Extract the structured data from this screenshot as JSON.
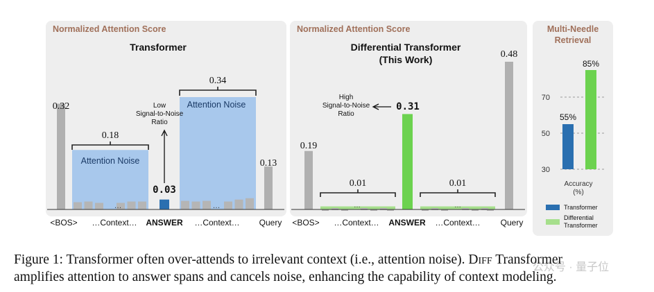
{
  "chart_data": [
    {
      "type": "bar",
      "panel_label": "Normalized Attention Score",
      "title": "Transformer",
      "categories": [
        "<BOS>",
        "…Context…",
        "ANSWER",
        "…Context…",
        "Query"
      ],
      "values": [
        0.32,
        0.18,
        0.03,
        0.34,
        0.13
      ],
      "value_labels": [
        "0.32",
        "0.18",
        "0.03",
        "0.34",
        "0.13"
      ],
      "noise_label": "Attention Noise",
      "context_bar_values": [
        0.022,
        0.024,
        0.02,
        0.012,
        0.02,
        0.024,
        0.024
      ],
      "context_bar_values_right": [
        0.026,
        0.024,
        0.026,
        0.012,
        0.024,
        0.03,
        0.034
      ],
      "ellipsis": "…",
      "annotation": [
        "Low",
        "Signal-to-Noise",
        "Ratio"
      ],
      "colors": {
        "bos": "#b0b0b0",
        "noise": "#a8c8ec",
        "context": "#b5b5b5",
        "answer": "#2a6fb0"
      }
    },
    {
      "type": "bar",
      "panel_label": "Normalized Attention Score",
      "title": [
        "Differential Transformer",
        "(This Work)"
      ],
      "categories": [
        "<BOS>",
        "…Context…",
        "ANSWER",
        "…Context…",
        "Query"
      ],
      "values": [
        0.19,
        0.01,
        0.31,
        0.01,
        0.48
      ],
      "value_labels": [
        "0.19",
        "0.01",
        "0.31",
        "0.01",
        "0.48"
      ],
      "ellipsis": "…",
      "annotation": [
        "High",
        "Signal-to-Noise",
        "Ratio"
      ],
      "colors": {
        "bos": "#b0b0b0",
        "noise": "#a6df8c",
        "answer": "#6cd24f"
      }
    },
    {
      "type": "bar",
      "title": [
        "Multi-Needle",
        "Retrieval"
      ],
      "series": [
        {
          "name": "Transformer",
          "values": [
            55
          ]
        },
        {
          "name": "Differential Transformer",
          "values": [
            85
          ]
        }
      ],
      "value_labels": [
        "55%",
        "85%"
      ],
      "legend_labels": [
        "Transformer",
        [
          "Differential",
          "Transformer"
        ]
      ],
      "ylabel": [
        "Accuracy",
        "(%)"
      ],
      "yticks": [
        30,
        50,
        70
      ],
      "ylim": [
        30,
        90
      ],
      "colors": {
        "transformer": "#2a6fb0",
        "diff": "#6cd24f"
      }
    }
  ],
  "caption": {
    "line1_a": "Figure 1: Transformer often over-attends to irrelevant context (i.e., attention noise). ",
    "line1_sc": "Diff",
    "line1_b": " Transformer",
    "line2": "amplifies attention to answer spans and cancels noise, enhancing the capability of context modeling."
  },
  "watermark": "公众号 · 量子位"
}
